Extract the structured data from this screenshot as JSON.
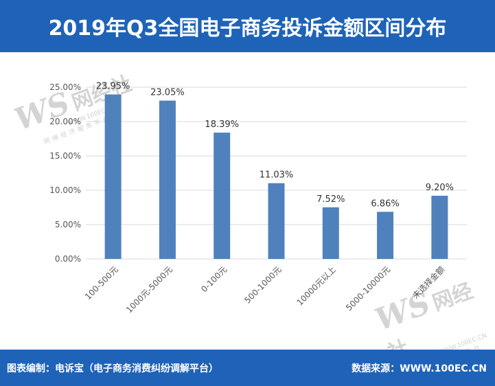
{
  "header": {
    "title": "2019年Q3全国电子商务投诉金额区间分布"
  },
  "footer": {
    "left": "图表编制：电诉宝（电子商务消费纠纷调解平台）",
    "right": "数据来源：WWW.100EC.CN"
  },
  "watermark": {
    "logo": "WS",
    "brand": "网经社",
    "url": "WWW.100EC.CN",
    "tagline": "网络经济服务平台"
  },
  "colors": {
    "header_bg": "#1f63b8",
    "bar": "#4f81bd",
    "grid": "#d9d9d9"
  },
  "chart_data": {
    "type": "bar",
    "title": "2019年Q3全国电子商务投诉金额区间分布",
    "categories": [
      "100-500元",
      "1000元-5000元",
      "0-100元",
      "500-1000元",
      "10000元以上",
      "5000-10000元",
      "未选择金额"
    ],
    "values": [
      23.95,
      23.05,
      18.39,
      11.03,
      7.52,
      6.86,
      9.2
    ],
    "data_labels": [
      "23.95%",
      "23.05%",
      "18.39%",
      "11.03%",
      "7.52%",
      "6.86%",
      "9.20%"
    ],
    "yticks": [
      "0.00%",
      "5.00%",
      "10.00%",
      "15.00%",
      "20.00%",
      "25.00%"
    ],
    "ytick_values": [
      0,
      5,
      10,
      15,
      20,
      25
    ],
    "ylim": [
      0,
      25
    ],
    "grid": true,
    "legend": "none"
  }
}
